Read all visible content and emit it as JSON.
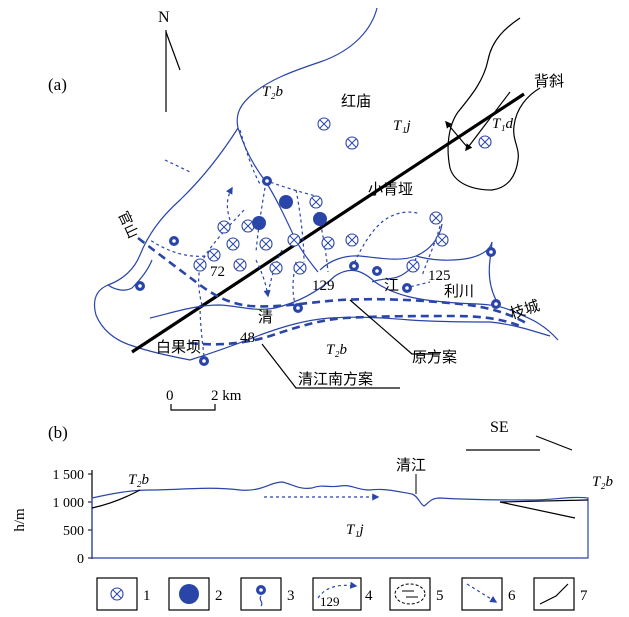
{
  "panel_a": {
    "label": "(a)",
    "north": "N",
    "anticline": "背斜",
    "strata": {
      "t2b": "T₂b",
      "t1j": "T₁j",
      "t1d": "T₁d",
      "t2b_south": "T₂b"
    },
    "places": {
      "hongmiao": "红庙",
      "xiaoqingya": "小青垭",
      "lichuan": "利川",
      "baiguoba": "白果坝",
      "zhicheng": "枝城",
      "qing": "清",
      "jiang": "江",
      "qijiang_left": "官山"
    },
    "numbers": {
      "n72": "72",
      "n129": "129",
      "n125": "125",
      "n48": "48"
    },
    "callouts": {
      "original": "原方案",
      "southern": "清江南方案"
    },
    "scale": {
      "zero": "0",
      "two": "2 km"
    }
  },
  "panel_b": {
    "label": "(b)",
    "direction": "SE",
    "axis_title": "h/m",
    "y_ticks": [
      "1 500",
      "1 000",
      "500",
      "0"
    ],
    "strata": {
      "t2b_left": "T₂b",
      "t2b_right": "T₂b",
      "t1j": "T₁j"
    },
    "river_label": "清江"
  },
  "legend": [
    {
      "num": "1"
    },
    {
      "num": "2"
    },
    {
      "num": "3"
    },
    {
      "num": "4",
      "sample": "129"
    },
    {
      "num": "5"
    },
    {
      "num": "6"
    },
    {
      "num": "7"
    }
  ],
  "colors": {
    "blue": "#2a45a8",
    "black": "#000000"
  }
}
